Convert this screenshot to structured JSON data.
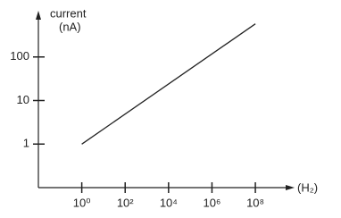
{
  "chart_data": {
    "type": "line",
    "ylabel_lines": [
      "current",
      "(nA)"
    ],
    "xlabel": "(H₂)",
    "x_log": true,
    "y_log": true,
    "grid": false,
    "xlim": [
      0.01,
      4000000000
    ],
    "ylim": [
      0.1,
      1000
    ],
    "xticks": [
      {
        "value": 1,
        "label": "10⁰"
      },
      {
        "value": 100,
        "label": "10²"
      },
      {
        "value": 10000,
        "label": "10⁴"
      },
      {
        "value": 1000000,
        "label": "10⁶"
      },
      {
        "value": 100000000,
        "label": "10⁸"
      }
    ],
    "yticks": [
      1,
      10,
      100
    ],
    "series": [
      {
        "color": "#222222",
        "x": [
          1,
          100000000
        ],
        "values": [
          1,
          575
        ]
      }
    ]
  }
}
